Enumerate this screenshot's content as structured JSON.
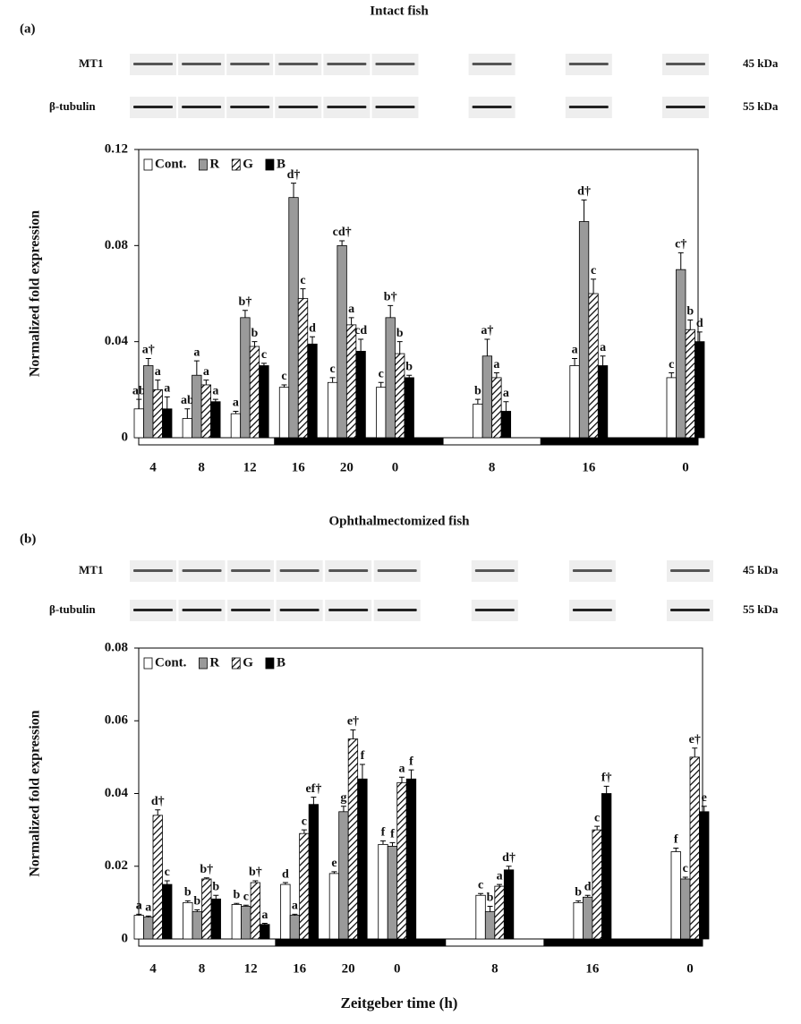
{
  "chart_data": [
    {
      "type": "bar",
      "panel_label": "(a)",
      "title": "Intact fish",
      "blot": [
        {
          "label": "MT1",
          "size": "45 kDa"
        },
        {
          "label": "β-tubulin",
          "size": "55 kDa"
        }
      ],
      "y_label": "Normalized fold expression",
      "categories": [
        "4",
        "8",
        "12",
        "16",
        "20",
        "0",
        "8",
        "16",
        "0"
      ],
      "ylim": [
        0,
        0.12
      ],
      "yticks": [
        0,
        0.04,
        0.08,
        0.12
      ],
      "legend": "upper left",
      "series": [
        {
          "name": "Cont.",
          "color": "#ffffff",
          "values": [
            0.012,
            0.008,
            0.01,
            0.021,
            0.023,
            0.021,
            0.014,
            0.03,
            0.025
          ],
          "errors": [
            0.004,
            0.004,
            0.001,
            0.001,
            0.002,
            0.002,
            0.002,
            0.003,
            0.002
          ],
          "letters": [
            "ab",
            "ab",
            "a",
            "c",
            "c",
            "c",
            "b",
            "a",
            "c"
          ]
        },
        {
          "name": "R",
          "color": "#9a9a9a",
          "values": [
            0.03,
            0.026,
            0.05,
            0.1,
            0.08,
            0.05,
            0.034,
            0.09,
            0.07
          ],
          "errors": [
            0.003,
            0.006,
            0.003,
            0.006,
            0.002,
            0.005,
            0.007,
            0.009,
            0.007
          ],
          "letters": [
            "a†",
            "a",
            "b†",
            "d†",
            "cd†",
            "b†",
            "a†",
            "d†",
            "c†"
          ]
        },
        {
          "name": "G",
          "color": "#ffffff",
          "hatch": true,
          "values": [
            0.02,
            0.022,
            0.038,
            0.058,
            0.047,
            0.035,
            0.025,
            0.06,
            0.045
          ],
          "errors": [
            0.004,
            0.002,
            0.002,
            0.004,
            0.003,
            0.005,
            0.002,
            0.006,
            0.004
          ],
          "letters": [
            "a",
            "a",
            "b",
            "c",
            "a",
            "b",
            "a",
            "c",
            "b"
          ]
        },
        {
          "name": "B",
          "color": "#000000",
          "values": [
            0.012,
            0.015,
            0.03,
            0.039,
            0.036,
            0.025,
            0.011,
            0.03,
            0.04
          ],
          "errors": [
            0.005,
            0.001,
            0.001,
            0.003,
            0.005,
            0.001,
            0.004,
            0.004,
            0.004
          ],
          "letters": [
            "a",
            "a",
            "c",
            "d",
            "cd",
            "b",
            "a",
            "a",
            "d"
          ]
        }
      ]
    },
    {
      "type": "bar",
      "panel_label": "(b)",
      "title": "Ophthalmectomized fish",
      "blot": [
        {
          "label": "MT1",
          "size": "45 kDa"
        },
        {
          "label": "β-tubulin",
          "size": "55 kDa"
        }
      ],
      "y_label": "Normalized fold expression",
      "x_label": "Zeitgeber time (h)",
      "categories": [
        "4",
        "8",
        "12",
        "16",
        "20",
        "0",
        "8",
        "16",
        "0"
      ],
      "ylim": [
        0,
        0.08
      ],
      "yticks": [
        0,
        0.02,
        0.04,
        0.06,
        0.08
      ],
      "legend": "upper left",
      "series": [
        {
          "name": "Cont.",
          "color": "#ffffff",
          "values": [
            0.0065,
            0.01,
            0.0095,
            0.015,
            0.018,
            0.026,
            0.012,
            0.01,
            0.024
          ],
          "errors": [
            0.0003,
            0.0005,
            0.0003,
            0.0005,
            0.0005,
            0.001,
            0.0005,
            0.0005,
            0.001
          ],
          "letters": [
            "a",
            "b",
            "b",
            "d",
            "e",
            "f",
            "c",
            "b",
            "f"
          ]
        },
        {
          "name": "R",
          "color": "#9a9a9a",
          "values": [
            0.006,
            0.0075,
            0.009,
            0.0065,
            0.035,
            0.0255,
            0.0075,
            0.0115,
            0.0165
          ],
          "errors": [
            0.0003,
            0.0005,
            0.0003,
            0.0003,
            0.0015,
            0.001,
            0.0015,
            0.0005,
            0.0005
          ],
          "letters": [
            "a",
            "b",
            "c",
            "a",
            "g",
            "f",
            "b",
            "d",
            "c"
          ]
        },
        {
          "name": "G",
          "color": "#ffffff",
          "hatch": true,
          "values": [
            0.034,
            0.0165,
            0.0155,
            0.029,
            0.055,
            0.043,
            0.0145,
            0.03,
            0.05
          ],
          "errors": [
            0.0015,
            0.0003,
            0.0005,
            0.001,
            0.0025,
            0.0015,
            0.0005,
            0.001,
            0.0025
          ],
          "letters": [
            "d†",
            "b†",
            "b†",
            "c",
            "e†",
            "a",
            "a",
            "c",
            "e†"
          ]
        },
        {
          "name": "B",
          "color": "#000000",
          "values": [
            0.015,
            0.011,
            0.004,
            0.037,
            0.044,
            0.044,
            0.019,
            0.04,
            0.035
          ],
          "errors": [
            0.001,
            0.001,
            0.0003,
            0.002,
            0.004,
            0.0025,
            0.001,
            0.002,
            0.0015
          ],
          "letters": [
            "c",
            "b",
            "a",
            "ef†",
            "f",
            "f",
            "d†",
            "f†",
            "e"
          ]
        }
      ]
    }
  ]
}
